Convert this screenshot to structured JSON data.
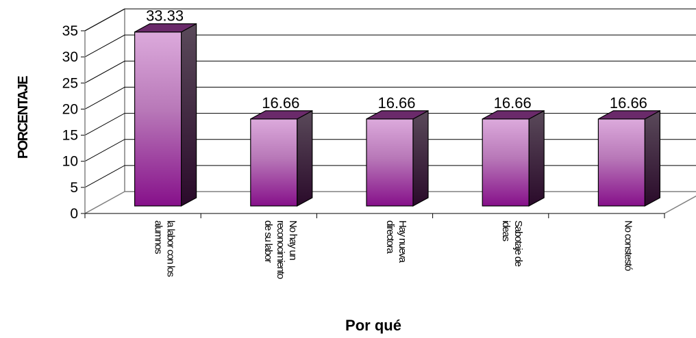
{
  "chart_data": {
    "type": "bar",
    "title": "",
    "xlabel": "Por qué",
    "ylabel": "PORCENTAJE",
    "categories": [
      [
        "la labor con los",
        "alumnos"
      ],
      [
        "No hay un",
        "reconocimiento",
        "de su labor"
      ],
      [
        "Hay nueva",
        "directora"
      ],
      [
        "Sabotaje de",
        "ideas"
      ],
      [
        "No constestó"
      ]
    ],
    "values": [
      33.33,
      16.66,
      16.66,
      16.66,
      16.66
    ],
    "value_labels": [
      "33.33",
      "16.66",
      "16.66",
      "16.66",
      "16.66"
    ],
    "yticks": [
      "0",
      "5",
      "10",
      "15",
      "20",
      "25",
      "30",
      "35"
    ],
    "ylim": [
      0,
      35
    ],
    "grid": true,
    "legend": "none",
    "colors": {
      "bar_top": "#d8a8d8",
      "bar_bottom": "#8a1a8a",
      "bar_side": "#3a1a3a",
      "bar_cap": "#6a2a6a",
      "grid": "#000000",
      "frame": "#808080"
    }
  }
}
